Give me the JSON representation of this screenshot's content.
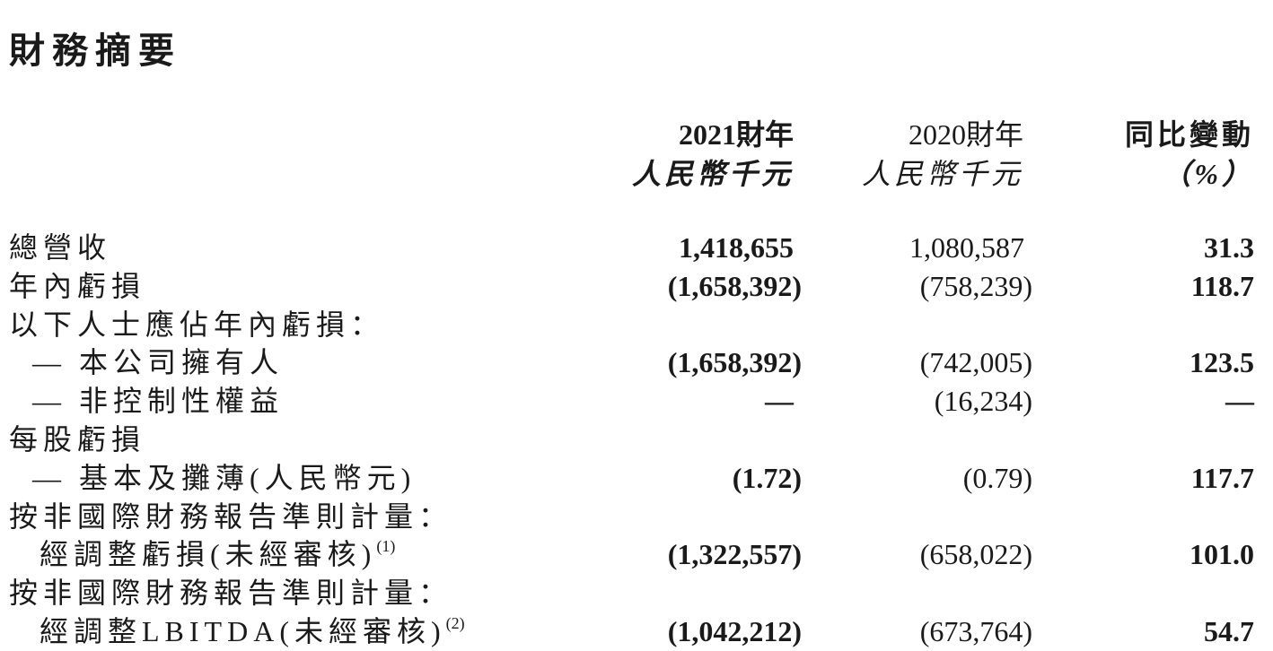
{
  "title": "財務摘要",
  "headers": [
    {
      "year": "2021財年",
      "unit": "人民幣千元"
    },
    {
      "year": "2020財年",
      "unit": "人民幣千元"
    },
    {
      "year": "同比變動",
      "unit": "（%）"
    }
  ],
  "rows": [
    {
      "label": "總營收",
      "indent": false,
      "v2021": "1,418,655",
      "v2020": "1,080,587",
      "change": "31.3"
    },
    {
      "label": "年內虧損",
      "indent": false,
      "v2021": "(1,658,392)",
      "v2020": "(758,239)",
      "change": "118.7"
    },
    {
      "label": "以下人士應佔年內虧損：",
      "indent": false,
      "v2021": "",
      "v2020": "",
      "change": ""
    },
    {
      "label": "— 本公司擁有人",
      "indent": true,
      "v2021": "(1,658,392)",
      "v2020": "(742,005)",
      "change": "123.5"
    },
    {
      "label": "— 非控制性權益",
      "indent": true,
      "v2021": "—",
      "v2020": "(16,234)",
      "change": "—"
    },
    {
      "label": "每股虧損",
      "indent": false,
      "v2021": "",
      "v2020": "",
      "change": ""
    },
    {
      "label": "— 基本及攤薄(人民幣元)",
      "indent": true,
      "v2021": "(1.72)",
      "v2020": "(0.79)",
      "change": "117.7"
    },
    {
      "label": "按非國際財務報告準則計量：",
      "indent": false,
      "v2021": "",
      "v2020": "",
      "change": ""
    },
    {
      "label": "經調整虧損(未經審核)",
      "sup": "(1)",
      "indent": true,
      "v2021": "(1,322,557)",
      "v2020": "(658,022)",
      "change": "101.0"
    },
    {
      "label": "按非國際財務報告準則計量：",
      "indent": false,
      "v2021": "",
      "v2020": "",
      "change": ""
    },
    {
      "label": "經調整LBITDA(未經審核)",
      "sup": "(2)",
      "indent": true,
      "v2021": "(1,042,212)",
      "v2020": "(673,764)",
      "change": "54.7"
    }
  ]
}
